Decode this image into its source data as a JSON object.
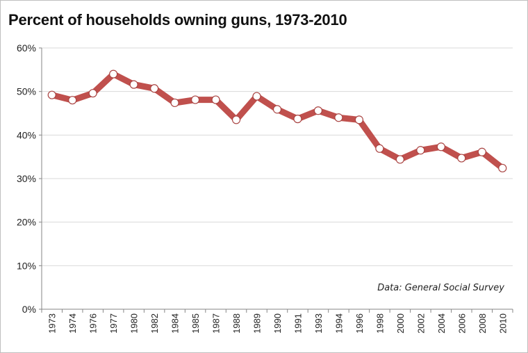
{
  "chart_data": {
    "type": "line",
    "title": "Percent of households owning guns, 1973-2010",
    "annotation": "Data: General Social Survey",
    "xlabel": "",
    "ylabel": "",
    "ylim": [
      0,
      60
    ],
    "yticks": [
      "0%",
      "10%",
      "20%",
      "30%",
      "40%",
      "50%",
      "60%"
    ],
    "grid": true,
    "categories": [
      "1973",
      "1974",
      "1976",
      "1977",
      "1980",
      "1982",
      "1984",
      "1985",
      "1987",
      "1988",
      "1989",
      "1990",
      "1991",
      "1993",
      "1994",
      "1996",
      "1998",
      "2000",
      "2002",
      "2004",
      "2006",
      "2008",
      "2010"
    ],
    "values": [
      49.2,
      48.0,
      49.6,
      54.0,
      51.6,
      50.7,
      47.4,
      48.1,
      48.1,
      43.5,
      48.9,
      45.9,
      43.7,
      45.6,
      44.0,
      43.5,
      36.9,
      34.4,
      36.5,
      37.3,
      34.7,
      36.1,
      32.4
    ],
    "line_color": "#c0504d",
    "marker_fill": "#ffffff",
    "grid_color": "#d9d9d9"
  }
}
